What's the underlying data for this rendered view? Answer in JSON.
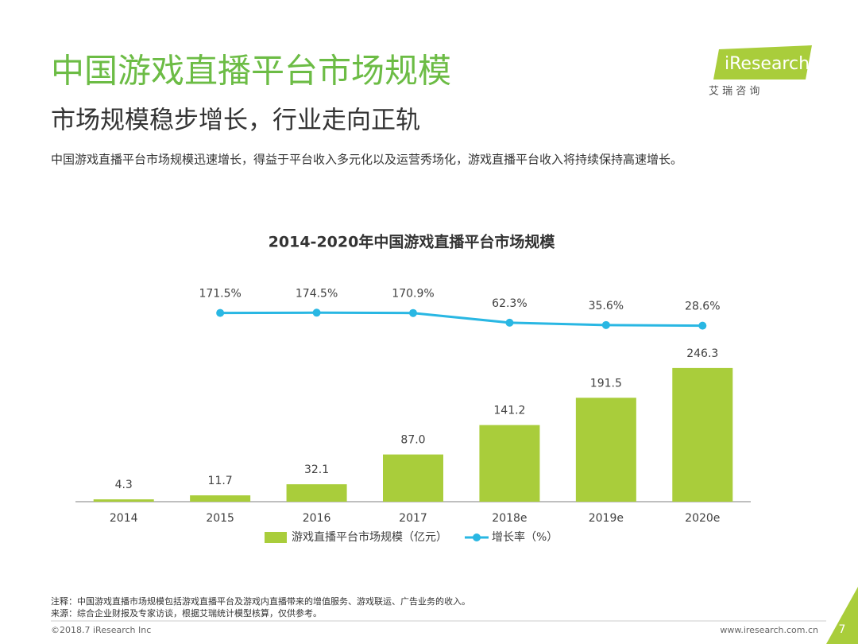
{
  "header": {
    "title": "中国游戏直播平台市场规模",
    "subtitle": "市场规模稳步增长，行业走向正轨",
    "description": "中国游戏直播平台市场规模迅速增长，得益于平台收入多元化以及运营秀场化，游戏直播平台收入将持续保持高速增长。"
  },
  "logo": {
    "brand": "iResearch",
    "tagline": "艾 瑞 咨 询"
  },
  "chart_data": {
    "type": "bar",
    "title": "2014-2020年中国游戏直播平台市场规模",
    "categories": [
      "2014",
      "2015",
      "2016",
      "2017",
      "2018e",
      "2019e",
      "2020e"
    ],
    "series": [
      {
        "name": "游戏直播平台市场规模（亿元）",
        "color": "#a9cd3b",
        "values": [
          4.3,
          11.7,
          32.1,
          87.0,
          141.2,
          191.5,
          246.3
        ],
        "value_labels": [
          "4.3",
          "11.7",
          "32.1",
          "87.0",
          "141.2",
          "191.5",
          "246.3"
        ]
      },
      {
        "name": "增长率（%）",
        "type": "line",
        "axis": "y2",
        "color": "#29b7e3",
        "values": [
          null,
          171.5,
          174.5,
          170.9,
          62.3,
          35.6,
          28.6
        ],
        "value_labels": [
          null,
          "171.5%",
          "174.5%",
          "170.9%",
          "62.3%",
          "35.6%",
          "28.6%"
        ]
      }
    ],
    "ylim": [
      0,
      400
    ],
    "y2lim": [
      -1950,
      490
    ]
  },
  "footer": {
    "note": "注释：中国游戏直播市场规模包括游戏直播平台及游戏内直播带来的增值服务、游戏联运、广告业务的收入。",
    "source": "来源：综合企业财报及专家访谈，根据艾瑞统计模型核算，仅供参考。",
    "copyright": "©2018.7 iResearch Inc",
    "website": "www.iresearch.com.cn",
    "page": "7"
  }
}
